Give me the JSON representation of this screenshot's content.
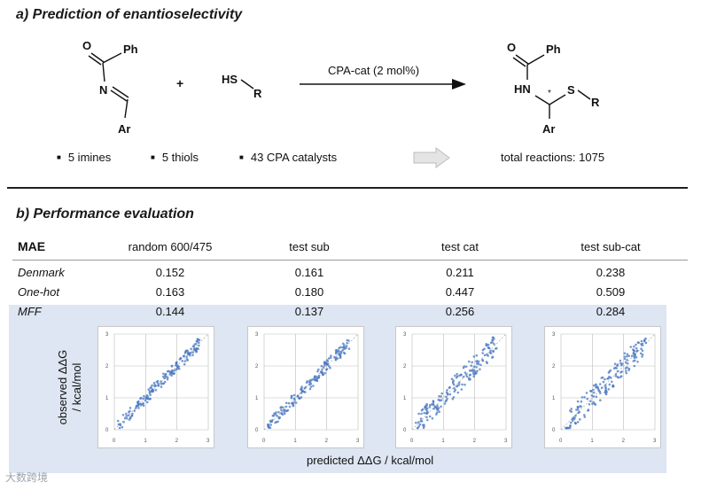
{
  "section_a": {
    "title": "a) Prediction of enantioselectivity",
    "reagent_text": "CPA-cat (2 mol%)",
    "plus": "+",
    "imine": {
      "ph": "Ph",
      "o": "O",
      "n": "N",
      "ar": "Ar"
    },
    "thiol": {
      "hs": "HS",
      "r": "R"
    },
    "product": {
      "o": "O",
      "ph": "Ph",
      "hn": "HN",
      "star": "*",
      "s": "S",
      "r": "R",
      "ar": "Ar"
    },
    "bullets": [
      "5 imines",
      "5 thiols",
      "43 CPA catalysts"
    ],
    "total_reactions": "total reactions: 1075"
  },
  "section_b": {
    "title": "b) Performance evaluation",
    "table": {
      "header": [
        "MAE",
        "random 600/475",
        "test sub",
        "test cat",
        "test sub-cat"
      ],
      "rows": [
        {
          "name": "Denmark",
          "values": [
            "0.152",
            "0.161",
            "0.211",
            "0.238"
          ]
        },
        {
          "name": "One-hot",
          "values": [
            "0.163",
            "0.180",
            "0.447",
            "0.509"
          ]
        },
        {
          "name": "MFF",
          "values": [
            "0.144",
            "0.137",
            "0.256",
            "0.284"
          ]
        }
      ]
    },
    "y_axis_label_line1": "observed ΔΔG",
    "y_axis_label_line2": "/ kcal/mol",
    "x_axis_label": "predicted ΔΔG / kcal/mol",
    "plot_ticks": [
      "0",
      "1",
      "2",
      "3"
    ],
    "point_color": "#4a78c2"
  },
  "watermark": "大数跨境"
}
